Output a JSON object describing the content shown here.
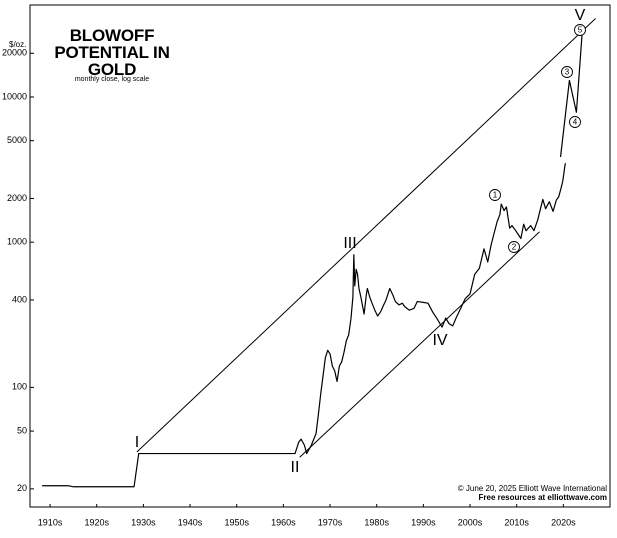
{
  "chart_data": {
    "type": "line",
    "title": "BLOWOFF POTENTIAL IN GOLD",
    "subtitle": "monthly close, log scale",
    "y_unit": "$/oz.",
    "credits": [
      "© June 20, 2025 Elliott Wave International",
      "Free resources at elliottwave.com"
    ],
    "log_scale": true,
    "xlim": [
      1910.7,
      2035
    ],
    "ylim": [
      15,
      43000
    ],
    "xticks": [
      {
        "value": 1915,
        "label": "1910s"
      },
      {
        "value": 1925,
        "label": "1920s"
      },
      {
        "value": 1935,
        "label": "1930s"
      },
      {
        "value": 1945,
        "label": "1940s"
      },
      {
        "value": 1955,
        "label": "1950s"
      },
      {
        "value": 1965,
        "label": "1960s"
      },
      {
        "value": 1975,
        "label": "1970s"
      },
      {
        "value": 1985,
        "label": "1980s"
      },
      {
        "value": 1995,
        "label": "1990s"
      },
      {
        "value": 2005,
        "label": "2000s"
      },
      {
        "value": 2015,
        "label": "2010s"
      },
      {
        "value": 2025,
        "label": "2020s"
      }
    ],
    "yticks": [
      20,
      50,
      100,
      400,
      1000,
      2000,
      5000,
      10000,
      20000
    ],
    "wave_labels": [
      "I",
      "II",
      "III",
      "IV",
      "V"
    ],
    "wave_counts": [
      "1",
      "2",
      "3",
      "4",
      "5"
    ],
    "series": [
      {
        "color": "#000000",
        "x": [
          1913.3,
          1919,
          1920,
          1933,
          1934,
          1967.5,
          1968.3,
          1968.8,
          1969.5,
          1970,
          1971,
          1972,
          1972.5,
          1973,
          1973.5,
          1974,
          1974.5,
          1975,
          1975.5,
          1976,
          1976.5,
          1977,
          1977.5,
          1978,
          1978.5,
          1979,
          1979.5,
          1979.9,
          1980.1,
          1980.3,
          1980.6,
          1980.9,
          1981.2,
          1981.6,
          1982.3,
          1982.8,
          1983,
          1983.5,
          1984,
          1984.6,
          1985.2,
          1985.8,
          1986.5,
          1987,
          1987.8,
          1988.5,
          1989,
          1989.8,
          1990.5,
          1991,
          1992,
          1993,
          1993.7,
          1995,
          1996,
          1997,
          1998,
          1999,
          1999.8,
          2000.5,
          2001.3,
          2002,
          2003,
          2004,
          2005,
          2006,
          2007,
          2008,
          2008.8,
          2009.5,
          2010,
          2010.8,
          2011.4,
          2011.7,
          2012.3,
          2012.8,
          2013.5,
          2014,
          2014.8,
          2015.9,
          2016.5,
          2017,
          2018,
          2018.7,
          2019.5,
          2020.6,
          2021.2,
          2022,
          2022.8,
          2023.5,
          2024,
          2024.5,
          2024.9,
          2025.3,
          2025.45
        ],
        "values": [
          21,
          21,
          20.67,
          20.67,
          35,
          35,
          42,
          44,
          40,
          35,
          40,
          48,
          65,
          90,
          120,
          160,
          180,
          170,
          140,
          130,
          110,
          140,
          150,
          175,
          210,
          230,
          300,
          420,
          820,
          500,
          650,
          600,
          480,
          420,
          320,
          440,
          480,
          420,
          380,
          340,
          310,
          330,
          370,
          400,
          480,
          430,
          390,
          370,
          380,
          360,
          340,
          350,
          390,
          385,
          380,
          330,
          295,
          260,
          300,
          275,
          265,
          300,
          350,
          410,
          440,
          600,
          660,
          900,
          730,
          950,
          1100,
          1380,
          1550,
          1830,
          1650,
          1750,
          1250,
          1300,
          1200,
          1060,
          1330,
          1200,
          1300,
          1200,
          1420,
          1970,
          1700,
          1900,
          1630,
          1950,
          2050,
          2350,
          2650,
          3300,
          3500
        ]
      },
      {
        "color": "#000000",
        "x": [
          2024.4,
          2026.3,
          2027.8,
          2029.1
        ],
        "values": [
          3860,
          13000,
          7850,
          29600
        ]
      },
      {
        "color": "#000000",
        "x": [
          1933.6,
          2031.9
        ],
        "values": [
          35.9,
          34700
        ]
      },
      {
        "color": "#000000",
        "x": [
          1968.5,
          2019.9
        ],
        "values": [
          33,
          1180
        ]
      }
    ]
  }
}
